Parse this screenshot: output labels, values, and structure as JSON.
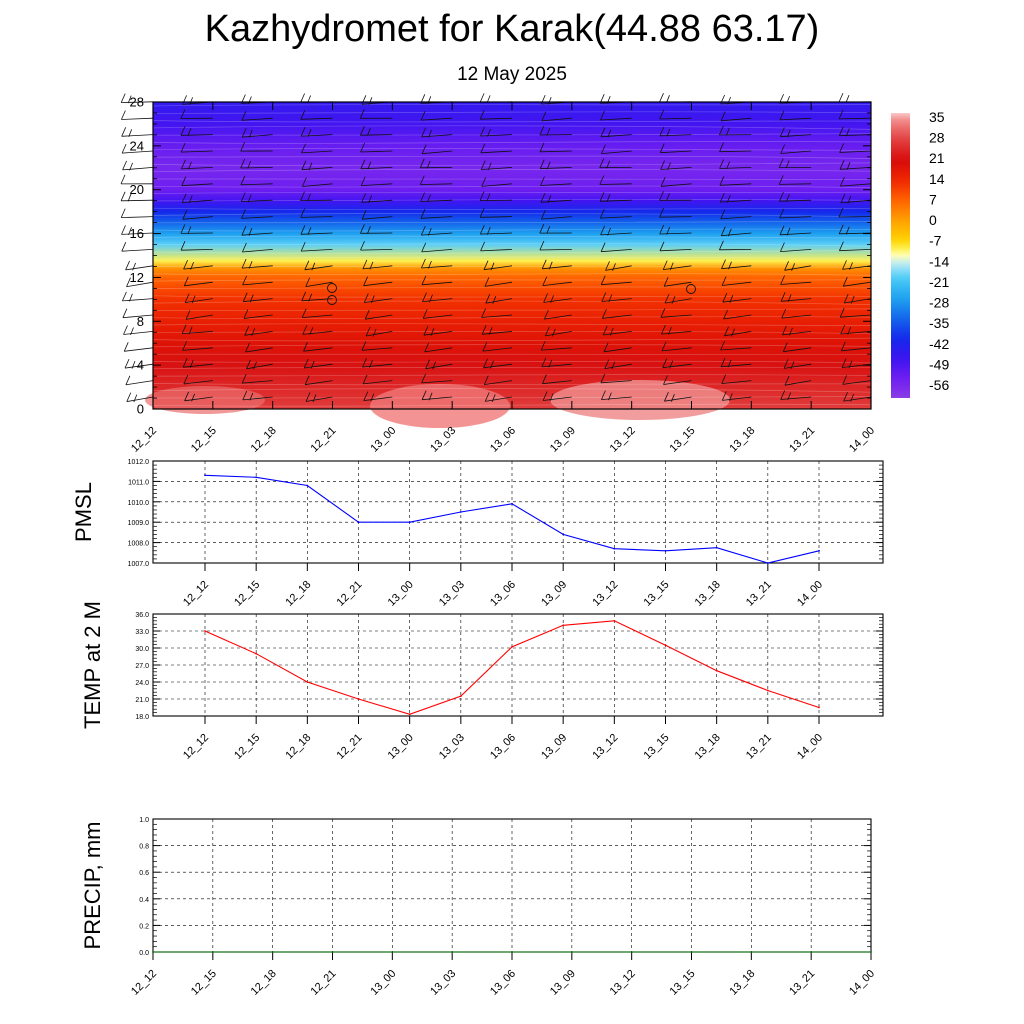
{
  "title": "Kazhydromet for Karak(44.88 63.17)",
  "subtitle": "12 May 2025",
  "chart_data": [
    {
      "type": "heatmap",
      "name": "vertical-profile",
      "y_ticks": [
        "0",
        "4",
        "8",
        "12",
        "16",
        "20",
        "24",
        "28"
      ],
      "y_tick_values": [
        0,
        4,
        8,
        12,
        16,
        20,
        24,
        28
      ],
      "ylim": [
        0,
        28
      ],
      "x_tick_labels": [
        "12_12",
        "12_15",
        "12_18",
        "12_21",
        "13_00",
        "13_03",
        "13_06",
        "13_09",
        "13_12",
        "13_15",
        "13_18",
        "13_21",
        "14_00"
      ],
      "temperature_profile": {
        "levels": [
          0,
          2,
          4,
          6,
          8,
          10,
          11,
          12,
          12.8,
          13.5,
          15,
          16,
          17,
          18,
          19,
          20,
          22,
          24,
          26,
          28
        ],
        "values": [
          28,
          25,
          22,
          19,
          16,
          13,
          10,
          7,
          2,
          -10,
          -20,
          -28,
          -35,
          -42,
          -50,
          -56,
          -58,
          -55,
          -50,
          -47
        ]
      },
      "colorbar": {
        "labels": [
          "35",
          "28",
          "21",
          "14",
          "7",
          "0",
          "-7",
          "-14",
          "-21",
          "-28",
          "-35",
          "-42",
          "-49",
          "-56"
        ],
        "range": [
          -63,
          38
        ]
      },
      "wind_barbs": "shown"
    },
    {
      "type": "line",
      "name": "pmsl",
      "ylabel": "PMSL",
      "y_ticks": [
        "1012.0",
        "1011.0",
        "1010.0",
        "1009.0",
        "1008.0",
        "1007.0"
      ],
      "ylim": [
        1007,
        1012
      ],
      "categories": [
        "12_12",
        "12_15",
        "12_18",
        "12_21",
        "13_00",
        "13_03",
        "13_06",
        "13_09",
        "13_12",
        "13_15",
        "13_18",
        "13_21",
        "14_00"
      ],
      "values": [
        1011.3,
        1011.2,
        1010.8,
        1009.0,
        1009.0,
        1009.5,
        1009.9,
        1008.4,
        1007.7,
        1007.6,
        1007.75,
        1007.0,
        1007.6
      ],
      "color": "#0000ff",
      "grid": true
    },
    {
      "type": "line",
      "name": "temp2m",
      "ylabel": "TEMP at 2 M",
      "y_ticks": [
        "36.0",
        "33.0",
        "30.0",
        "27.0",
        "24.0",
        "21.0",
        "18.0"
      ],
      "ylim": [
        18,
        36
      ],
      "categories": [
        "12_12",
        "12_15",
        "12_18",
        "12_21",
        "13_00",
        "13_03",
        "13_06",
        "13_09",
        "13_12",
        "13_15",
        "13_18",
        "13_21",
        "14_00"
      ],
      "values": [
        33.0,
        29.0,
        24.0,
        21.0,
        18.3,
        21.5,
        30.2,
        34.0,
        34.8,
        30.5,
        26.0,
        22.5,
        19.5
      ],
      "color": "#ff0000",
      "grid": true
    },
    {
      "type": "line",
      "name": "precip",
      "ylabel": "PRECIP, mm",
      "y_ticks": [
        "1.0",
        "0.8",
        "0.6",
        "0.4",
        "0.2",
        "0.0"
      ],
      "ylim": [
        0,
        1
      ],
      "x_tick_labels": [
        "12_12",
        "12_15",
        "12_18",
        "12_21",
        "13_00",
        "13_03",
        "13_06",
        "13_09",
        "13_12",
        "13_15",
        "13_18",
        "13_21",
        "14_00"
      ],
      "values": [
        0,
        0,
        0,
        0,
        0,
        0,
        0,
        0,
        0,
        0,
        0,
        0,
        0
      ],
      "color": "#006400",
      "grid": true
    }
  ]
}
